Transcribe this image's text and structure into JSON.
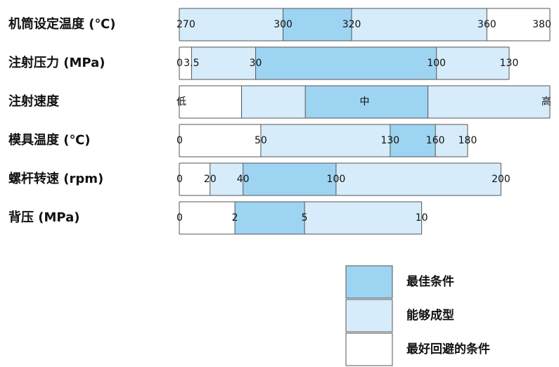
{
  "colors": {
    "best": "#9dd4f2",
    "ok": "#d6ecfa",
    "avoid": "#ffffff",
    "line": "#555555"
  },
  "chart_data": {
    "type": "range-bar",
    "rows": [
      {
        "label": "机筒设定温度 (℃)",
        "ticks": [
          {
            "t": "270",
            "x": 0
          },
          {
            "t": "300",
            "x": 0.28
          },
          {
            "t": "320",
            "x": 0.465
          },
          {
            "t": "360",
            "x": 0.83
          },
          {
            "t": "380",
            "x": 1.0
          }
        ],
        "segments": [
          {
            "from": 0,
            "to": 0.28,
            "zone": "ok"
          },
          {
            "from": 0.28,
            "to": 0.465,
            "zone": "best"
          },
          {
            "from": 0.465,
            "to": 0.83,
            "zone": "ok"
          },
          {
            "from": 0.83,
            "to": 1.0,
            "zone": "avoid"
          }
        ],
        "end": 1.0
      },
      {
        "label": "注射压力 (MPa)",
        "ticks": [
          {
            "t": "0",
            "x": 0
          },
          {
            "t": "3.5",
            "x": 0.033
          },
          {
            "t": "30",
            "x": 0.206
          },
          {
            "t": "100",
            "x": 0.694
          },
          {
            "t": "130",
            "x": 0.89
          }
        ],
        "segments": [
          {
            "from": 0,
            "to": 0.033,
            "zone": "avoid"
          },
          {
            "from": 0.033,
            "to": 0.206,
            "zone": "ok"
          },
          {
            "from": 0.206,
            "to": 0.694,
            "zone": "best"
          },
          {
            "from": 0.694,
            "to": 0.89,
            "zone": "ok"
          }
        ],
        "end": 0.89
      },
      {
        "label": "注射速度",
        "ticks": [
          {
            "t": "低",
            "x": 0
          },
          {
            "t": "中",
            "x": 0.5
          },
          {
            "t": "高",
            "x": 1.0
          }
        ],
        "segments": [
          {
            "from": 0,
            "to": 0.168,
            "zone": "avoid"
          },
          {
            "from": 0.168,
            "to": 0.34,
            "zone": "ok"
          },
          {
            "from": 0.34,
            "to": 0.671,
            "zone": "best"
          },
          {
            "from": 0.671,
            "to": 1.0,
            "zone": "ok"
          }
        ],
        "end": 1.0
      },
      {
        "label": "模具温度 (℃)",
        "ticks": [
          {
            "t": "0",
            "x": 0
          },
          {
            "t": "50",
            "x": 0.22
          },
          {
            "t": "130",
            "x": 0.569
          },
          {
            "t": "160",
            "x": 0.691
          },
          {
            "t": "180",
            "x": 0.778
          }
        ],
        "segments": [
          {
            "from": 0,
            "to": 0.22,
            "zone": "avoid"
          },
          {
            "from": 0.22,
            "to": 0.569,
            "zone": "ok"
          },
          {
            "from": 0.569,
            "to": 0.691,
            "zone": "best"
          },
          {
            "from": 0.691,
            "to": 0.778,
            "zone": "ok"
          }
        ],
        "end": 0.778
      },
      {
        "label": "螺杆转速 (rpm)",
        "ticks": [
          {
            "t": "0",
            "x": 0
          },
          {
            "t": "20",
            "x": 0.083
          },
          {
            "t": "40",
            "x": 0.172
          },
          {
            "t": "100",
            "x": 0.423
          },
          {
            "t": "200",
            "x": 0.868
          }
        ],
        "segments": [
          {
            "from": 0,
            "to": 0.083,
            "zone": "avoid"
          },
          {
            "from": 0.083,
            "to": 0.172,
            "zone": "ok"
          },
          {
            "from": 0.172,
            "to": 0.423,
            "zone": "best"
          },
          {
            "from": 0.423,
            "to": 0.868,
            "zone": "ok"
          }
        ],
        "end": 0.868
      },
      {
        "label": "背压 (MPa)",
        "ticks": [
          {
            "t": "0",
            "x": 0
          },
          {
            "t": "2",
            "x": 0.15
          },
          {
            "t": "5",
            "x": 0.338
          },
          {
            "t": "10",
            "x": 0.654
          }
        ],
        "segments": [
          {
            "from": 0,
            "to": 0.15,
            "zone": "avoid"
          },
          {
            "from": 0.15,
            "to": 0.338,
            "zone": "best"
          },
          {
            "from": 0.338,
            "to": 0.654,
            "zone": "ok"
          }
        ],
        "end": 0.654
      }
    ]
  },
  "legend": [
    {
      "zone": "best",
      "label": "最佳条件"
    },
    {
      "zone": "ok",
      "label": "能够成型"
    },
    {
      "zone": "avoid",
      "label": "最好回避的条件"
    }
  ]
}
